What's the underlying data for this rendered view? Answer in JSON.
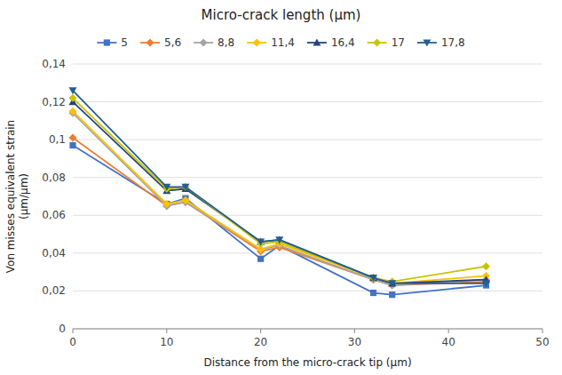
{
  "chart_data": {
    "type": "line",
    "title": "Micro-crack length (μm)",
    "xlabel": "Distance from the micro-crack tip (μm)",
    "ylabel": "Von misses equivalent strain\n(μm/μm)",
    "x": [
      0,
      10,
      12,
      20,
      22,
      32,
      34,
      44
    ],
    "xlim": [
      0,
      50
    ],
    "xticks": [
      0,
      10,
      20,
      30,
      40,
      50
    ],
    "ylim": [
      0,
      0.14
    ],
    "yticks": [
      0,
      {
        "value": 0.02,
        "label": "0,02"
      },
      {
        "value": 0.04,
        "label": "0,04"
      },
      {
        "value": 0.06,
        "label": "0,06"
      },
      {
        "value": 0.08,
        "label": "0,08"
      },
      {
        "value": 0.1,
        "label": "0,1"
      },
      {
        "value": 0.12,
        "label": "0,12"
      },
      {
        "value": 0.14,
        "label": "0,14"
      }
    ],
    "grid": true,
    "legend": "top",
    "series": [
      {
        "name": "5",
        "color": "#4472C4",
        "marker": "square",
        "values": [
          0.097,
          0.066,
          0.069,
          0.037,
          0.044,
          0.019,
          0.018,
          0.023
        ]
      },
      {
        "name": "5,6",
        "color": "#ED7D31",
        "marker": "diamond",
        "values": [
          0.101,
          0.065,
          0.067,
          0.041,
          0.043,
          0.026,
          0.023,
          0.025
        ]
      },
      {
        "name": "8,8",
        "color": "#A5A5A5",
        "marker": "diamond",
        "values": [
          0.114,
          0.065,
          0.067,
          0.042,
          0.044,
          0.026,
          0.023,
          0.026
        ]
      },
      {
        "name": "11,4",
        "color": "#FFC000",
        "marker": "diamond",
        "values": [
          0.115,
          0.066,
          0.068,
          0.042,
          0.045,
          0.027,
          0.024,
          0.028
        ]
      },
      {
        "name": "16,4",
        "color": "#264478",
        "marker": "triangle-up",
        "values": [
          0.12,
          0.073,
          0.074,
          0.046,
          0.047,
          0.027,
          0.024,
          0.026
        ]
      },
      {
        "name": "17",
        "color": "#C9C400",
        "marker": "diamond",
        "values": [
          0.122,
          0.074,
          0.075,
          0.045,
          0.046,
          0.027,
          0.025,
          0.033
        ]
      },
      {
        "name": "17,8",
        "color": "#255E91",
        "marker": "triangle-down",
        "values": [
          0.126,
          0.075,
          0.075,
          0.046,
          0.047,
          0.027,
          0.024,
          0.024
        ]
      }
    ]
  }
}
